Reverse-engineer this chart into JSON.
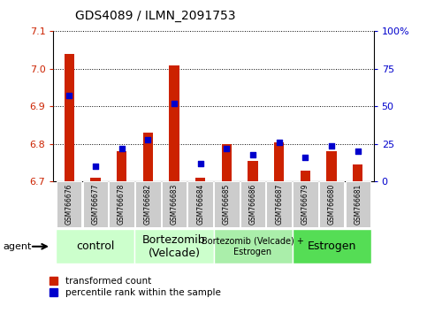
{
  "title": "GDS4089 / ILMN_2091753",
  "samples": [
    "GSM766676",
    "GSM766677",
    "GSM766678",
    "GSM766682",
    "GSM766683",
    "GSM766684",
    "GSM766685",
    "GSM766686",
    "GSM766687",
    "GSM766679",
    "GSM766680",
    "GSM766681"
  ],
  "red_values": [
    7.04,
    6.71,
    6.78,
    6.83,
    7.01,
    6.71,
    6.8,
    6.755,
    6.805,
    6.73,
    6.78,
    6.745
  ],
  "blue_values": [
    57,
    10,
    22,
    28,
    52,
    12,
    22,
    18,
    26,
    16,
    24,
    20
  ],
  "ylim_left": [
    6.7,
    7.1
  ],
  "ylim_right": [
    0,
    100
  ],
  "yticks_left": [
    6.7,
    6.8,
    6.9,
    7.0,
    7.1
  ],
  "yticks_right": [
    0,
    25,
    50,
    75,
    100
  ],
  "ytick_labels_right": [
    "0",
    "25",
    "50",
    "75",
    "100%"
  ],
  "group_spans": [
    [
      0,
      2
    ],
    [
      3,
      5
    ],
    [
      6,
      8
    ],
    [
      9,
      11
    ]
  ],
  "group_colors": [
    "#ccffcc",
    "#ccffcc",
    "#aaeeaa",
    "#55dd55"
  ],
  "group_labels": [
    "control",
    "Bortezomib\n(Velcade)",
    "Bortezomib (Velcade) +\nEstrogen",
    "Estrogen"
  ],
  "group_fontsizes": [
    9,
    9,
    7,
    9
  ],
  "bar_color": "#cc2200",
  "marker_color": "#0000cc",
  "legend_red": "transformed count",
  "legend_blue": "percentile rank within the sample",
  "base_value": 6.7,
  "xlim": [
    -0.6,
    11.6
  ]
}
